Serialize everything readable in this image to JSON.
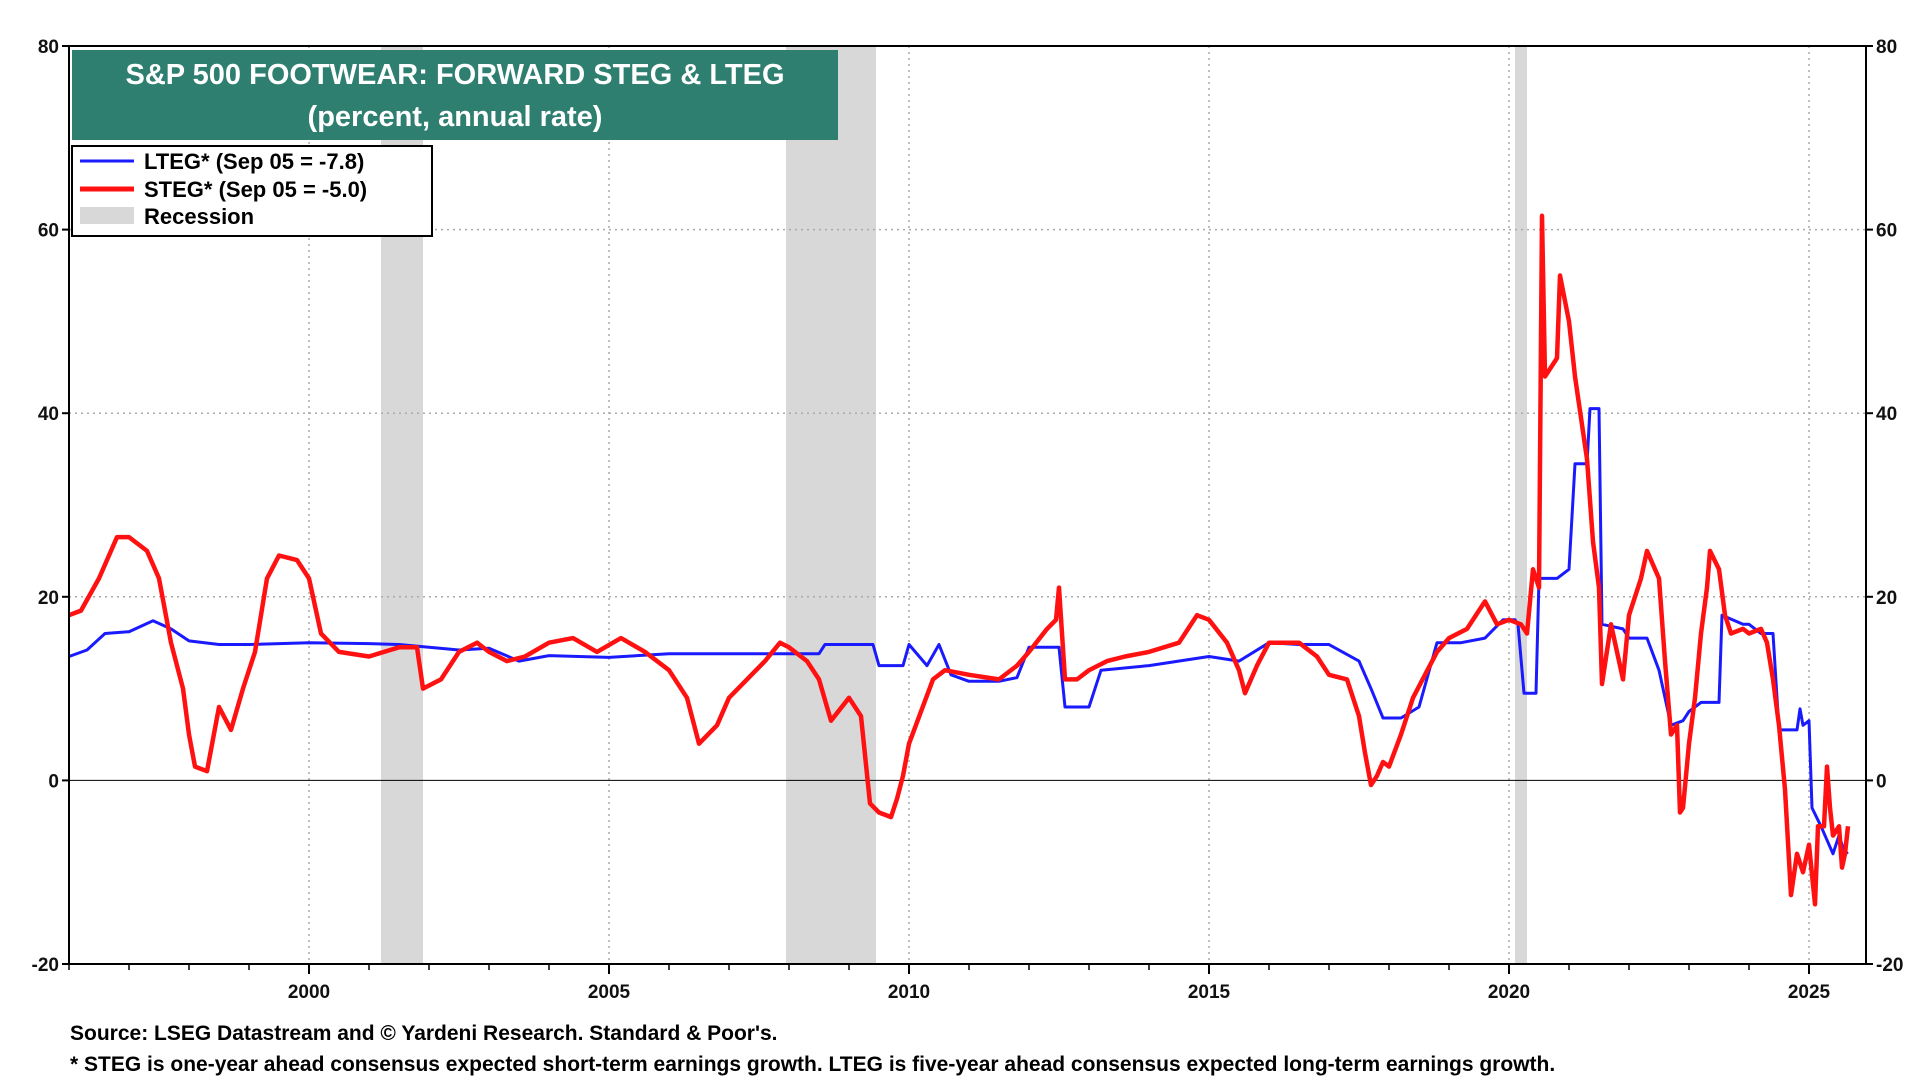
{
  "chart_data": {
    "type": "line",
    "title": "S&P 500 FOOTWEAR: FORWARD STEG & LTEG",
    "subtitle": "(percent, annual rate)",
    "xlim": [
      1996.0,
      2025.95
    ],
    "ylim": [
      -20,
      80
    ],
    "x_ticks": [
      "2000",
      "2005",
      "2010",
      "2015",
      "2020",
      "2025"
    ],
    "y_ticks_left": [
      "-20",
      "0",
      "20",
      "40",
      "60",
      "80"
    ],
    "y_ticks_right": [
      "-20",
      "0",
      "20",
      "40",
      "60",
      "80"
    ],
    "grid": true,
    "legend_position": "top-left",
    "legend": [
      {
        "label": "LTEG* (Sep 05 = -7.8)",
        "color": "#1a1aff"
      },
      {
        "label": "STEG* (Sep 05 = -5.0)",
        "color": "#ff1111"
      },
      {
        "label": "Recession",
        "color": "#d8d8d8"
      }
    ],
    "recessions": [
      [
        2001.2,
        2001.9
      ],
      [
        2007.95,
        2009.45
      ],
      [
        2020.1,
        2020.3
      ]
    ],
    "series": [
      {
        "name": "LTEG* (Sep 05 = -7.8)",
        "color": "#1a1aff",
        "points": [
          [
            1996.0,
            13.5
          ],
          [
            1996.3,
            14.2
          ],
          [
            1996.6,
            16.0
          ],
          [
            1997.0,
            16.2
          ],
          [
            1997.4,
            17.4
          ],
          [
            1997.7,
            16.5
          ],
          [
            1998.0,
            15.2
          ],
          [
            1998.5,
            14.8
          ],
          [
            1999.0,
            14.8
          ],
          [
            2000.0,
            15.0
          ],
          [
            2001.0,
            14.9
          ],
          [
            2001.5,
            14.8
          ],
          [
            2002.0,
            14.5
          ],
          [
            2002.5,
            14.2
          ],
          [
            2003.0,
            14.4
          ],
          [
            2003.5,
            13.0
          ],
          [
            2004.0,
            13.6
          ],
          [
            2005.0,
            13.4
          ],
          [
            2006.0,
            13.8
          ],
          [
            2007.0,
            13.8
          ],
          [
            2008.0,
            13.8
          ],
          [
            2008.5,
            13.8
          ],
          [
            2008.6,
            14.8
          ],
          [
            2009.0,
            14.8
          ],
          [
            2009.4,
            14.8
          ],
          [
            2009.5,
            12.5
          ],
          [
            2009.9,
            12.5
          ],
          [
            2010.0,
            14.8
          ],
          [
            2010.3,
            12.5
          ],
          [
            2010.5,
            14.8
          ],
          [
            2010.7,
            11.5
          ],
          [
            2011.0,
            10.8
          ],
          [
            2011.5,
            10.8
          ],
          [
            2011.8,
            11.2
          ],
          [
            2012.0,
            14.5
          ],
          [
            2012.5,
            14.5
          ],
          [
            2012.6,
            8.0
          ],
          [
            2013.0,
            8.0
          ],
          [
            2013.2,
            12.0
          ],
          [
            2014.0,
            12.5
          ],
          [
            2015.0,
            13.5
          ],
          [
            2015.5,
            13.0
          ],
          [
            2016.0,
            15.0
          ],
          [
            2016.5,
            14.8
          ],
          [
            2017.0,
            14.8
          ],
          [
            2017.5,
            13.0
          ],
          [
            2017.7,
            10.0
          ],
          [
            2017.9,
            6.8
          ],
          [
            2018.2,
            6.8
          ],
          [
            2018.5,
            8.0
          ],
          [
            2018.8,
            15.0
          ],
          [
            2019.2,
            15.0
          ],
          [
            2019.6,
            15.5
          ],
          [
            2019.9,
            17.5
          ],
          [
            2020.1,
            17.5
          ],
          [
            2020.15,
            17.0
          ],
          [
            2020.25,
            9.5
          ],
          [
            2020.45,
            9.5
          ],
          [
            2020.5,
            22.0
          ],
          [
            2020.8,
            22.0
          ],
          [
            2021.0,
            23.0
          ],
          [
            2021.1,
            34.5
          ],
          [
            2021.3,
            34.5
          ],
          [
            2021.35,
            40.5
          ],
          [
            2021.5,
            40.5
          ],
          [
            2021.55,
            17.0
          ],
          [
            2021.9,
            16.5
          ],
          [
            2022.0,
            15.5
          ],
          [
            2022.3,
            15.5
          ],
          [
            2022.5,
            12.0
          ],
          [
            2022.7,
            6.0
          ],
          [
            2022.9,
            6.5
          ],
          [
            2023.0,
            7.5
          ],
          [
            2023.2,
            8.5
          ],
          [
            2023.5,
            8.5
          ],
          [
            2023.55,
            18.0
          ],
          [
            2023.9,
            17.0
          ],
          [
            2024.0,
            17.0
          ],
          [
            2024.2,
            16.0
          ],
          [
            2024.4,
            16.0
          ],
          [
            2024.5,
            5.5
          ],
          [
            2024.8,
            5.5
          ],
          [
            2024.85,
            7.8
          ],
          [
            2024.9,
            6.0
          ],
          [
            2025.0,
            6.5
          ],
          [
            2025.05,
            -3.0
          ],
          [
            2025.2,
            -5.0
          ],
          [
            2025.4,
            -8.0
          ],
          [
            2025.5,
            -6.0
          ],
          [
            2025.6,
            -8.0
          ],
          [
            2025.65,
            -7.8
          ]
        ]
      },
      {
        "name": "STEG* (Sep 05 = -5.0)",
        "color": "#ff1111",
        "points": [
          [
            1996.0,
            18.0
          ],
          [
            1996.2,
            18.5
          ],
          [
            1996.5,
            22.0
          ],
          [
            1996.8,
            26.5
          ],
          [
            1997.0,
            26.5
          ],
          [
            1997.3,
            25.0
          ],
          [
            1997.5,
            22.0
          ],
          [
            1997.7,
            15.0
          ],
          [
            1997.9,
            10.0
          ],
          [
            1998.0,
            5.0
          ],
          [
            1998.1,
            1.5
          ],
          [
            1998.3,
            1.0
          ],
          [
            1998.5,
            8.0
          ],
          [
            1998.7,
            5.5
          ],
          [
            1998.9,
            10.0
          ],
          [
            1999.1,
            14.0
          ],
          [
            1999.3,
            22.0
          ],
          [
            1999.5,
            24.5
          ],
          [
            1999.8,
            24.0
          ],
          [
            2000.0,
            22.0
          ],
          [
            2000.2,
            16.0
          ],
          [
            2000.5,
            14.0
          ],
          [
            2001.0,
            13.5
          ],
          [
            2001.5,
            14.5
          ],
          [
            2001.8,
            14.5
          ],
          [
            2001.9,
            10.0
          ],
          [
            2002.2,
            11.0
          ],
          [
            2002.5,
            14.0
          ],
          [
            2002.8,
            15.0
          ],
          [
            2003.0,
            14.0
          ],
          [
            2003.3,
            13.0
          ],
          [
            2003.6,
            13.5
          ],
          [
            2004.0,
            15.0
          ],
          [
            2004.4,
            15.5
          ],
          [
            2004.8,
            14.0
          ],
          [
            2005.2,
            15.5
          ],
          [
            2005.6,
            14.0
          ],
          [
            2006.0,
            12.0
          ],
          [
            2006.3,
            9.0
          ],
          [
            2006.5,
            4.0
          ],
          [
            2006.8,
            6.0
          ],
          [
            2007.0,
            9.0
          ],
          [
            2007.3,
            11.0
          ],
          [
            2007.6,
            13.0
          ],
          [
            2007.85,
            15.0
          ],
          [
            2008.0,
            14.5
          ],
          [
            2008.3,
            13.0
          ],
          [
            2008.5,
            11.0
          ],
          [
            2008.7,
            6.5
          ],
          [
            2009.0,
            9.0
          ],
          [
            2009.2,
            7.0
          ],
          [
            2009.35,
            -2.5
          ],
          [
            2009.5,
            -3.5
          ],
          [
            2009.7,
            -4.0
          ],
          [
            2009.8,
            -2.0
          ],
          [
            2009.9,
            0.5
          ],
          [
            2010.0,
            4.0
          ],
          [
            2010.2,
            7.5
          ],
          [
            2010.4,
            11.0
          ],
          [
            2010.6,
            12.0
          ],
          [
            2011.0,
            11.5
          ],
          [
            2011.5,
            11.0
          ],
          [
            2011.8,
            12.5
          ],
          [
            2012.0,
            14.0
          ],
          [
            2012.3,
            16.5
          ],
          [
            2012.45,
            17.5
          ],
          [
            2012.5,
            21.0
          ],
          [
            2012.6,
            11.0
          ],
          [
            2012.8,
            11.0
          ],
          [
            2013.0,
            12.0
          ],
          [
            2013.3,
            13.0
          ],
          [
            2013.6,
            13.5
          ],
          [
            2014.0,
            14.0
          ],
          [
            2014.5,
            15.0
          ],
          [
            2014.8,
            18.0
          ],
          [
            2015.0,
            17.5
          ],
          [
            2015.3,
            15.0
          ],
          [
            2015.5,
            12.0
          ],
          [
            2015.6,
            9.5
          ],
          [
            2015.8,
            12.5
          ],
          [
            2016.0,
            15.0
          ],
          [
            2016.5,
            15.0
          ],
          [
            2016.8,
            13.5
          ],
          [
            2017.0,
            11.5
          ],
          [
            2017.3,
            11.0
          ],
          [
            2017.5,
            7.0
          ],
          [
            2017.6,
            3.0
          ],
          [
            2017.7,
            -0.5
          ],
          [
            2017.8,
            0.5
          ],
          [
            2017.9,
            2.0
          ],
          [
            2018.0,
            1.5
          ],
          [
            2018.2,
            5.0
          ],
          [
            2018.4,
            9.0
          ],
          [
            2018.6,
            11.5
          ],
          [
            2018.8,
            14.0
          ],
          [
            2019.0,
            15.5
          ],
          [
            2019.3,
            16.5
          ],
          [
            2019.6,
            19.5
          ],
          [
            2019.8,
            17.0
          ],
          [
            2020.0,
            17.5
          ],
          [
            2020.2,
            17.0
          ],
          [
            2020.3,
            16.0
          ],
          [
            2020.4,
            23.0
          ],
          [
            2020.5,
            21.0
          ],
          [
            2020.55,
            61.5
          ],
          [
            2020.6,
            44.0
          ],
          [
            2020.8,
            46.0
          ],
          [
            2020.85,
            55.0
          ],
          [
            2021.0,
            50.0
          ],
          [
            2021.1,
            44.0
          ],
          [
            2021.3,
            35.0
          ],
          [
            2021.4,
            26.0
          ],
          [
            2021.5,
            21.0
          ],
          [
            2021.55,
            10.5
          ],
          [
            2021.7,
            17.0
          ],
          [
            2021.9,
            11.0
          ],
          [
            2022.0,
            18.0
          ],
          [
            2022.2,
            22.0
          ],
          [
            2022.3,
            25.0
          ],
          [
            2022.5,
            22.0
          ],
          [
            2022.6,
            13.0
          ],
          [
            2022.7,
            5.0
          ],
          [
            2022.8,
            6.0
          ],
          [
            2022.85,
            -3.5
          ],
          [
            2022.9,
            -3.0
          ],
          [
            2023.0,
            4.0
          ],
          [
            2023.1,
            9.0
          ],
          [
            2023.2,
            16.0
          ],
          [
            2023.3,
            21.0
          ],
          [
            2023.35,
            25.0
          ],
          [
            2023.5,
            23.0
          ],
          [
            2023.6,
            18.0
          ],
          [
            2023.7,
            16.0
          ],
          [
            2023.9,
            16.5
          ],
          [
            2024.0,
            16.0
          ],
          [
            2024.2,
            16.5
          ],
          [
            2024.3,
            15.0
          ],
          [
            2024.4,
            11.0
          ],
          [
            2024.5,
            6.0
          ],
          [
            2024.6,
            -1.0
          ],
          [
            2024.7,
            -12.5
          ],
          [
            2024.8,
            -8.0
          ],
          [
            2024.9,
            -10.0
          ],
          [
            2025.0,
            -7.0
          ],
          [
            2025.1,
            -13.5
          ],
          [
            2025.15,
            -5.0
          ],
          [
            2025.25,
            -5.0
          ],
          [
            2025.3,
            1.5
          ],
          [
            2025.35,
            -3.0
          ],
          [
            2025.4,
            -6.0
          ],
          [
            2025.5,
            -5.0
          ],
          [
            2025.55,
            -9.5
          ],
          [
            2025.6,
            -8.0
          ],
          [
            2025.65,
            -5.0
          ]
        ]
      }
    ]
  },
  "footer": {
    "source": "Source: LSEG Datastream and © Yardeni Research. Standard & Poor's.",
    "note": "* STEG is one-year ahead consensus expected short-term earnings growth. LTEG is five-year ahead consensus expected long-term earnings growth."
  }
}
